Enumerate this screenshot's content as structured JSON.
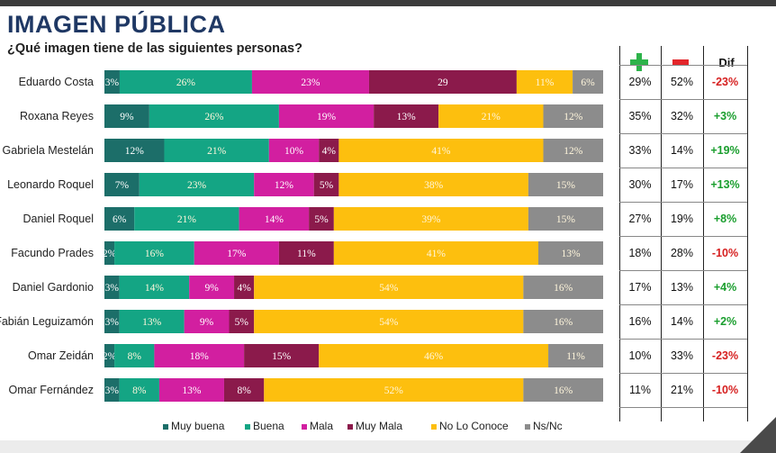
{
  "title": "IMAGEN PÚBLICA",
  "subtitle": "¿Qué imagen tiene de las siguientes personas?",
  "table_headers": {
    "plus": "plus-icon",
    "minus": "minus-icon",
    "dif": "Dif"
  },
  "colors": {
    "muy_buena": "#1c6e69",
    "buena": "#14a584",
    "mala": "#d21fa0",
    "muy_mala": "#8b1a4b",
    "no_lo_conoce": "#fdbf0e",
    "ns_nc": "#8c8c8c",
    "dif_pos": "#1a9e2e",
    "dif_neg": "#d62020"
  },
  "chart_data": {
    "type": "bar",
    "orientation": "horizontal",
    "stacked": true,
    "categories": [
      "Eduardo Costa",
      "Roxana Reyes",
      "Gabriela Mestelán",
      "Leonardo Roquel",
      "Daniel Roquel",
      "Facundo Prades",
      "Daniel Gardonio",
      "Fabián Leguizamón",
      "Omar Zeidán",
      "Omar Fernández"
    ],
    "series": [
      {
        "name": "Muy buena",
        "values": [
          3,
          9,
          12,
          7,
          6,
          2,
          3,
          3,
          2,
          3
        ],
        "labels": [
          "3%",
          "9%",
          "12%",
          "7%",
          "6%",
          "2%",
          "3%",
          "3%",
          "2%",
          "3%"
        ]
      },
      {
        "name": "Buena",
        "values": [
          26,
          26,
          21,
          23,
          21,
          16,
          14,
          13,
          8,
          8
        ],
        "labels": [
          "26%",
          "26%",
          "21%",
          "23%",
          "21%",
          "16%",
          "14%",
          "13%",
          "8%",
          "8%"
        ]
      },
      {
        "name": "Mala",
        "values": [
          23,
          19,
          10,
          12,
          14,
          17,
          9,
          9,
          18,
          13
        ],
        "labels": [
          "23%",
          "19%",
          "10%",
          "12%",
          "14%",
          "17%",
          "9%",
          "9%",
          "18%",
          "13%"
        ]
      },
      {
        "name": "Muy Mala",
        "values": [
          29,
          13,
          4,
          5,
          5,
          11,
          4,
          5,
          15,
          8
        ],
        "labels": [
          "29",
          "13%",
          "4%",
          "5%",
          "5%",
          "11%",
          "4%",
          "5%",
          "15%",
          "8%"
        ]
      },
      {
        "name": "No Lo Conoce",
        "values": [
          11,
          21,
          41,
          38,
          39,
          41,
          54,
          54,
          46,
          52
        ],
        "labels": [
          "11%",
          "21%",
          "41%",
          "38%",
          "39%",
          "41%",
          "54%",
          "54%",
          "46%",
          "52%"
        ]
      },
      {
        "name": "Ns/Nc",
        "values": [
          6,
          12,
          12,
          15,
          15,
          13,
          16,
          16,
          11,
          16
        ],
        "labels": [
          "6%",
          "12%",
          "12%",
          "15%",
          "15%",
          "13%",
          "16%",
          "16%",
          "11%",
          "16%"
        ]
      }
    ],
    "xlim": [
      0,
      100
    ],
    "legend_position": "bottom"
  },
  "table_rows": [
    {
      "plus": "29%",
      "minus": "52%",
      "dif": "-23%",
      "sign": "neg"
    },
    {
      "plus": "35%",
      "minus": "32%",
      "dif": "+3%",
      "sign": "pos"
    },
    {
      "plus": "33%",
      "minus": "14%",
      "dif": "+19%",
      "sign": "pos"
    },
    {
      "plus": "30%",
      "minus": "17%",
      "dif": "+13%",
      "sign": "pos"
    },
    {
      "plus": "27%",
      "minus": "19%",
      "dif": "+8%",
      "sign": "pos"
    },
    {
      "plus": "18%",
      "minus": "28%",
      "dif": "-10%",
      "sign": "neg"
    },
    {
      "plus": "17%",
      "minus": "13%",
      "dif": "+4%",
      "sign": "pos"
    },
    {
      "plus": "16%",
      "minus": "14%",
      "dif": "+2%",
      "sign": "pos"
    },
    {
      "plus": "10%",
      "minus": "33%",
      "dif": "-23%",
      "sign": "neg"
    },
    {
      "plus": "11%",
      "minus": "21%",
      "dif": "-10%",
      "sign": "neg"
    }
  ]
}
